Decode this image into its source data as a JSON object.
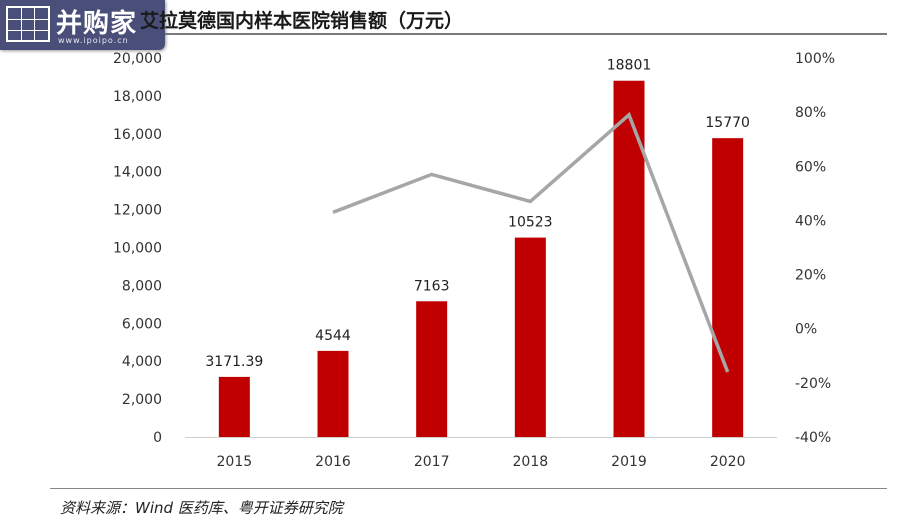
{
  "logo": {
    "name": "并购家",
    "url": "www.ipoipo.cn"
  },
  "title": "艾拉莫德国内样本医院销售额（万元）",
  "source": "资料来源：Wind 医药库、粤开证券研究院",
  "chart_data": {
    "type": "bar",
    "title": "艾拉莫德国内样本医院销售额（万元）",
    "categories": [
      "2015",
      "2016",
      "2017",
      "2018",
      "2019",
      "2020"
    ],
    "series": [
      {
        "type": "bar",
        "axis": "left",
        "values": [
          3171.39,
          4544,
          7163,
          10523,
          18801,
          15770
        ],
        "data_labels": [
          "3171.39",
          "4544",
          "7163",
          "10523",
          "18801",
          "15770"
        ],
        "color": "#c00000"
      },
      {
        "type": "line",
        "axis": "right",
        "values": [
          null,
          43,
          57,
          47,
          79,
          -16
        ],
        "color": "#a6a6a6"
      }
    ],
    "y_left": {
      "ylim": [
        0,
        20000
      ],
      "ticks": [
        "0",
        "2,000",
        "4,000",
        "6,000",
        "8,000",
        "10,000",
        "12,000",
        "14,000",
        "16,000",
        "18,000",
        "20,000"
      ]
    },
    "y_right": {
      "ylim": [
        -40,
        100
      ],
      "ticks": [
        "-40%",
        "-20%",
        "0%",
        "20%",
        "40%",
        "60%",
        "80%",
        "100%"
      ]
    },
    "grid": false,
    "legend": "none"
  }
}
